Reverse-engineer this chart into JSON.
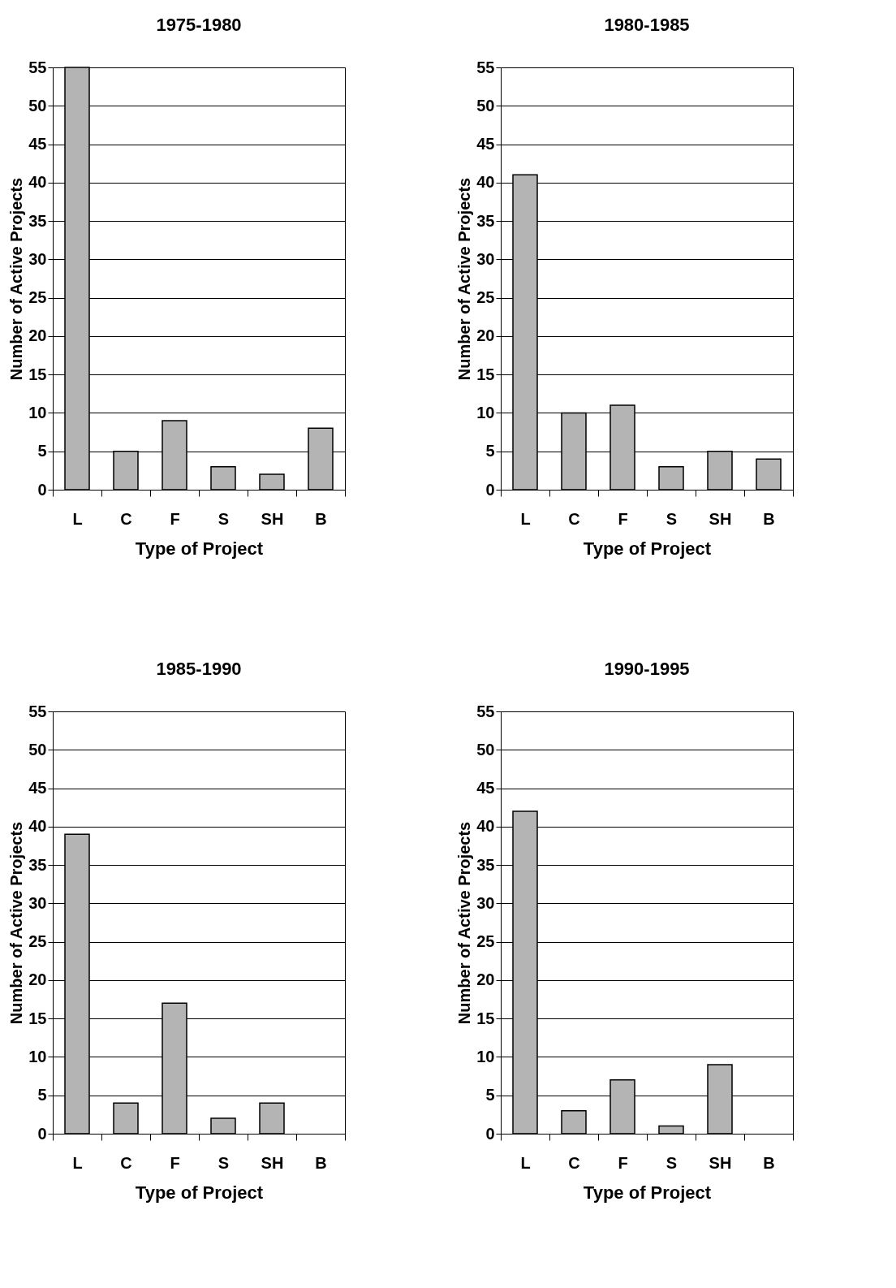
{
  "chart_data": [
    {
      "type": "bar",
      "title": "1975-1980",
      "xlabel": "Type of Project",
      "ylabel": "Number of Active Projects",
      "categories": [
        "L",
        "C",
        "F",
        "S",
        "SH",
        "B"
      ],
      "values": [
        55,
        5,
        9,
        3,
        2,
        8
      ],
      "color": "#b4b4b4",
      "ylim": [
        0,
        55
      ],
      "yticks": [
        0,
        5,
        10,
        15,
        20,
        25,
        30,
        35,
        40,
        45,
        50,
        55
      ],
      "grid": "y"
    },
    {
      "type": "bar",
      "title": "1980-1985",
      "xlabel": "Type of Project",
      "ylabel": "Number of Active Projects",
      "categories": [
        "L",
        "C",
        "F",
        "S",
        "SH",
        "B"
      ],
      "values": [
        41,
        10,
        11,
        3,
        5,
        4
      ],
      "color": "#b4b4b4",
      "ylim": [
        0,
        55
      ],
      "yticks": [
        0,
        5,
        10,
        15,
        20,
        25,
        30,
        35,
        40,
        45,
        50,
        55
      ],
      "grid": "y"
    },
    {
      "type": "bar",
      "title": "1985-1990",
      "xlabel": "Type of Project",
      "ylabel": "Number of Active Projects",
      "categories": [
        "L",
        "C",
        "F",
        "S",
        "SH",
        "B"
      ],
      "values": [
        39,
        4,
        17,
        2,
        4,
        null
      ],
      "color": "#b4b4b4",
      "ylim": [
        0,
        55
      ],
      "yticks": [
        0,
        5,
        10,
        15,
        20,
        25,
        30,
        35,
        40,
        45,
        50,
        55
      ],
      "grid": "y"
    },
    {
      "type": "bar",
      "title": "1990-1995",
      "xlabel": "Type of Project",
      "ylabel": "Number of Active Projects",
      "categories": [
        "L",
        "C",
        "F",
        "S",
        "SH",
        "B"
      ],
      "values": [
        42,
        3,
        7,
        1,
        9,
        null
      ],
      "color": "#b4b4b4",
      "ylim": [
        0,
        55
      ],
      "yticks": [
        0,
        5,
        10,
        15,
        20,
        25,
        30,
        35,
        40,
        45,
        50,
        55
      ],
      "grid": "y"
    }
  ]
}
